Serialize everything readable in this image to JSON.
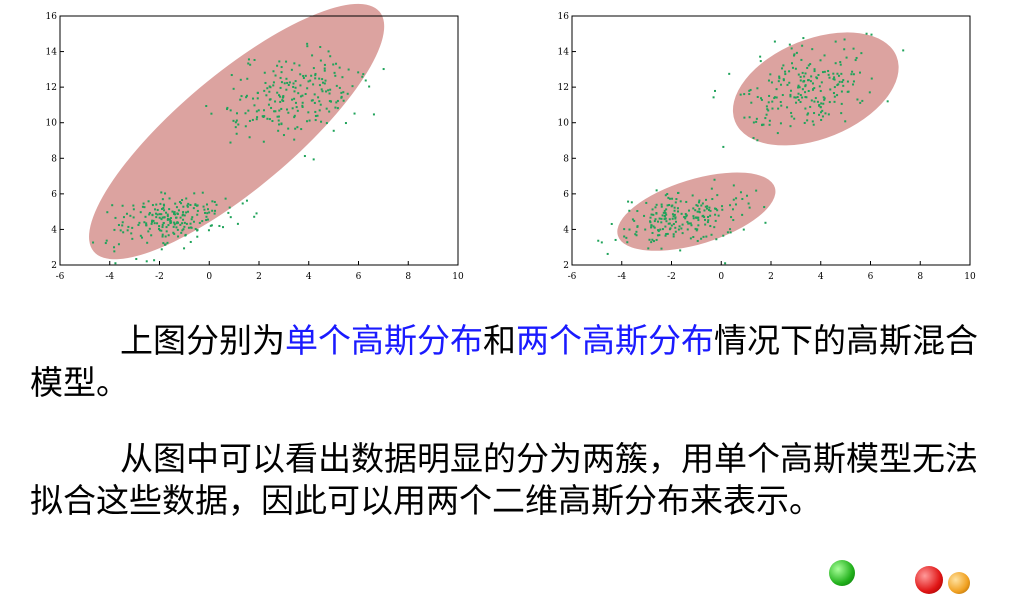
{
  "chart_data": [
    {
      "type": "scatter",
      "xlim": [
        -6,
        10
      ],
      "ylim": [
        2,
        16
      ],
      "x_ticks": [
        -6,
        -4,
        -2,
        0,
        2,
        4,
        6,
        8,
        10
      ],
      "y_ticks": [
        2,
        4,
        6,
        8,
        10,
        12,
        14,
        16
      ],
      "grid": false,
      "point_color": "#1fa35a",
      "ellipse_color": "#dca3a0",
      "clusters": [
        {
          "center": [
            -1.5,
            4.6
          ],
          "spread": [
            1.2,
            0.75
          ],
          "corr": 0.35
        },
        {
          "center": [
            3.2,
            11.4
          ],
          "spread": [
            1.4,
            1.2
          ],
          "corr": 0.35
        }
      ],
      "ellipses": [
        {
          "center": [
            1.1,
            9.5
          ],
          "semi_major": 7.5,
          "semi_minor": 2.3,
          "angle_deg": 40
        }
      ]
    },
    {
      "type": "scatter",
      "xlim": [
        -6,
        10
      ],
      "ylim": [
        2,
        16
      ],
      "x_ticks": [
        -6,
        -4,
        -2,
        0,
        2,
        4,
        6,
        8,
        10
      ],
      "y_ticks": [
        2,
        4,
        6,
        8,
        10,
        12,
        14,
        16
      ],
      "grid": false,
      "point_color": "#1fa35a",
      "ellipse_color": "#dca3a0",
      "clusters": [
        {
          "center": [
            -1.5,
            4.7
          ],
          "spread": [
            1.2,
            0.75
          ],
          "corr": 0.35
        },
        {
          "center": [
            3.4,
            11.8
          ],
          "spread": [
            1.4,
            1.2
          ],
          "corr": 0.35
        }
      ],
      "ellipses": [
        {
          "center": [
            -1.0,
            5.0
          ],
          "semi_major": 3.3,
          "semi_minor": 1.3,
          "angle_deg": 17
        },
        {
          "center": [
            3.8,
            11.9
          ],
          "semi_major": 3.5,
          "semi_minor": 2.0,
          "angle_deg": 22
        }
      ]
    }
  ],
  "text": {
    "p1_a": "上图分别为",
    "p1_b": "单个高斯分布",
    "p1_c": "和",
    "p1_d": "两个高斯分布",
    "p1_e": "情况下的高斯混合模型。",
    "p2": "从图中可以看出数据明显的分为两簇，用单个高斯模型无法拟合这些数据，因此可以用两个二维高斯分布来表示。"
  },
  "colors": {
    "highlight": "#1a1aff",
    "text": "#000000"
  }
}
